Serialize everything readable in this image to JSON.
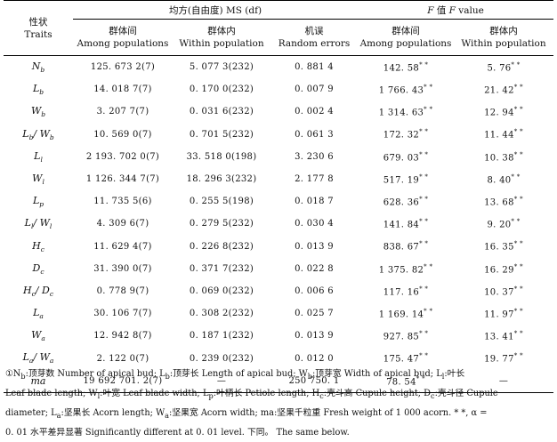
{
  "header": {
    "trait_cn": "性状",
    "trait_en": "Traits",
    "ms_group": "均方(自由度) MS (df)",
    "f_group": "F 值 F value",
    "cols": [
      {
        "cn": "群体间",
        "en": "Among populations"
      },
      {
        "cn": "群体内",
        "en": "Within population"
      },
      {
        "cn": "机误",
        "en": "Random errors"
      },
      {
        "cn": "群体间",
        "en": "Among populations"
      },
      {
        "cn": "群体内",
        "en": "Within population"
      }
    ]
  },
  "rows": [
    {
      "t": "N",
      "s": "b",
      "t2": "",
      "s2": "",
      "among": "125. 673 2(7)",
      "within": "5. 077 3(232)",
      "err": "0. 881 4",
      "f1": "142. 58",
      "f2": "5. 76"
    },
    {
      "t": "L",
      "s": "b",
      "t2": "",
      "s2": "",
      "among": "14. 018 7(7)",
      "within": "0. 170 0(232)",
      "err": "0. 007 9",
      "f1": "1 766. 43",
      "f2": "21. 42"
    },
    {
      "t": "W",
      "s": "b",
      "t2": "",
      "s2": "",
      "among": "3. 207 7(7)",
      "within": "0. 031 6(232)",
      "err": "0. 002 4",
      "f1": "1 314. 63",
      "f2": "12. 94"
    },
    {
      "t": "L",
      "s": "b",
      "t2": "W",
      "s2": "b",
      "among": "10. 569 0(7)",
      "within": "0. 701 5(232)",
      "err": "0. 061 3",
      "f1": "172. 32",
      "f2": "11. 44"
    },
    {
      "t": "L",
      "s": "l",
      "t2": "",
      "s2": "",
      "among": "2 193. 702 0(7)",
      "within": "33. 518 0(198)",
      "err": "3. 230 6",
      "f1": "679. 03",
      "f2": "10. 38"
    },
    {
      "t": "W",
      "s": "l",
      "t2": "",
      "s2": "",
      "among": "1 126. 344 7(7)",
      "within": "18. 296 3(232)",
      "err": "2. 177 8",
      "f1": "517. 19",
      "f2": "8. 40"
    },
    {
      "t": "L",
      "s": "p",
      "t2": "",
      "s2": "",
      "among": "11. 735 5(6)",
      "within": "0. 255 5(198)",
      "err": "0. 018 7",
      "f1": "628. 36",
      "f2": "13. 68"
    },
    {
      "t": "L",
      "s": "l",
      "t2": "W",
      "s2": "l",
      "among": "4. 309 6(7)",
      "within": "0. 279 5(232)",
      "err": "0. 030 4",
      "f1": "141. 84",
      "f2": "9. 20"
    },
    {
      "t": "H",
      "s": "c",
      "t2": "",
      "s2": "",
      "among": "11. 629 4(7)",
      "within": "0. 226 8(232)",
      "err": "0. 013 9",
      "f1": "838. 67",
      "f2": "16. 35"
    },
    {
      "t": "D",
      "s": "c",
      "t2": "",
      "s2": "",
      "among": "31. 390 0(7)",
      "within": "0. 371 7(232)",
      "err": "0. 022 8",
      "f1": "1 375. 82",
      "f2": "16. 29"
    },
    {
      "t": "H",
      "s": "c",
      "t2": "D",
      "s2": "c",
      "among": "0. 778 9(7)",
      "within": "0. 069 0(232)",
      "err": "0. 006 6",
      "f1": "117. 16",
      "f2": "10. 37"
    },
    {
      "t": "L",
      "s": "a",
      "t2": "",
      "s2": "",
      "among": "30. 106 7(7)",
      "within": "0. 308 2(232)",
      "err": "0. 025 7",
      "f1": "1 169. 14",
      "f2": "11. 97"
    },
    {
      "t": "W",
      "s": "a",
      "t2": "",
      "s2": "",
      "among": "12. 942 8(7)",
      "within": "0. 187 1(232)",
      "err": "0. 013 9",
      "f1": "927. 85",
      "f2": "13. 41"
    },
    {
      "t": "L",
      "s": "a",
      "t2": "W",
      "s2": "a",
      "among": "2. 122 0(7)",
      "within": "0. 239 0(232)",
      "err": "0. 012 0",
      "f1": "175. 47",
      "f2": "19. 77"
    },
    {
      "t": "ma",
      "s": "",
      "t2": "",
      "s2": "",
      "among": "19 692 701. 2(7)",
      "within": "—",
      "err": "250 750. 1",
      "f1": "78. 54",
      "f2": "—"
    }
  ],
  "sig_mark": "* *",
  "notes": {
    "line1": "①N<sub>b</sub>:顶芽数 Number of apical bud; L<sub>b</sub>:顶芽长 Length of apical bud; W<sub>b</sub>:顶芽宽 Width of apical bud; L<sub>l</sub>:叶长",
    "line2": "Leaf blade length; W<sub>l</sub>:叶宽 Leaf blade width; L<sub>p</sub>:叶柄长 Petiole length; H<sub>c</sub>:壳斗高 Cupule height; D<sub>c</sub>:壳斗径 Cupule",
    "line3": "diameter; L<sub>a</sub>:坚果长 Acorn length; W<sub>a</sub>:坚果宽 Acorn width; ma:坚果千粒重 Fresh weight of 1 000 acorn. * *, α =",
    "line4": "0. 01 水平差异显著 Significantly different at 0. 01 level. 下同。 The same below."
  }
}
